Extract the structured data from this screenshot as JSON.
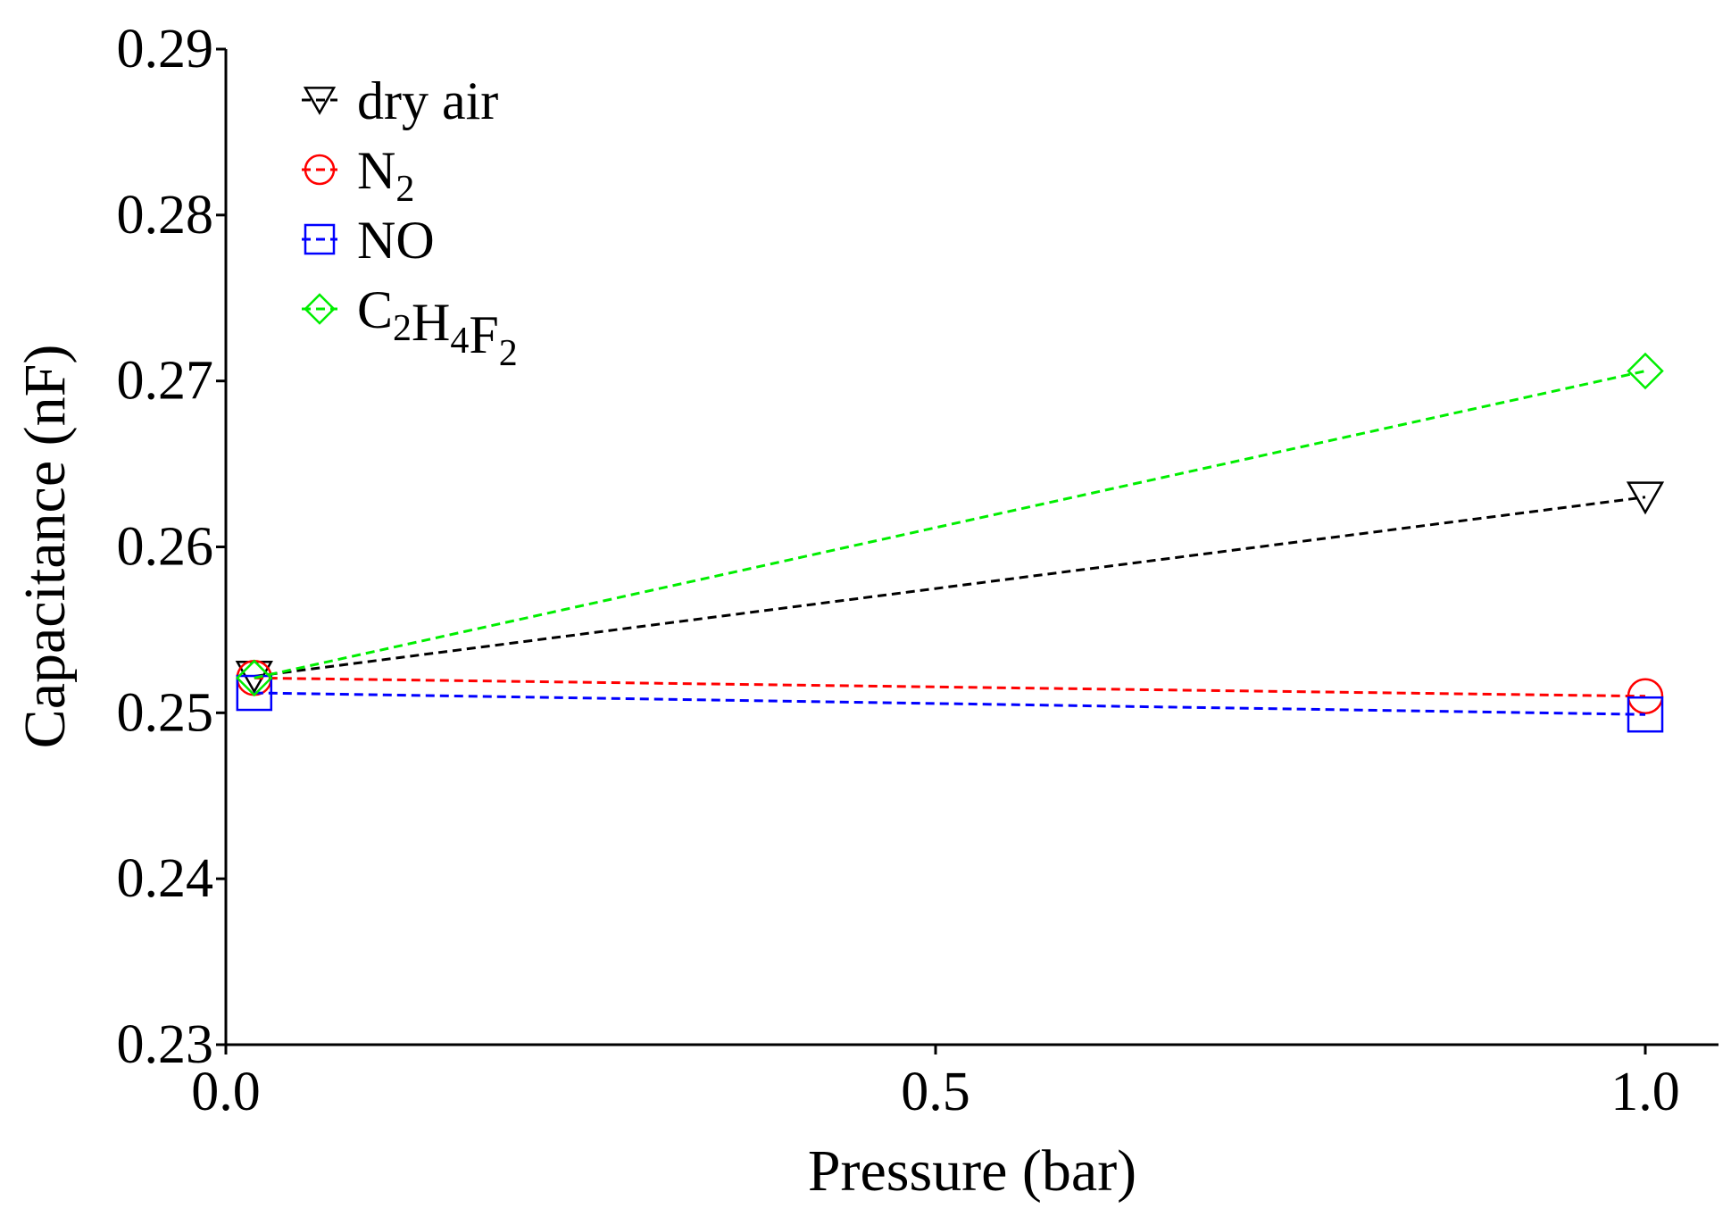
{
  "chart_data": {
    "type": "line",
    "title": "",
    "xlabel": "Pressure (bar)",
    "ylabel": "Capacitance (nF)",
    "xlim": [
      0.0,
      1.05
    ],
    "ylim": [
      0.23,
      0.29
    ],
    "xticks": [
      0.0,
      0.5,
      1.0
    ],
    "xtick_labels": [
      "0.0",
      "0.5",
      "1.0"
    ],
    "yticks": [
      0.23,
      0.24,
      0.25,
      0.26,
      0.27,
      0.28,
      0.29
    ],
    "ytick_labels": [
      "0.23",
      "0.24",
      "0.25",
      "0.26",
      "0.27",
      "0.28",
      "0.29"
    ],
    "grid": false,
    "legend_position": "top-left",
    "x": [
      0.02,
      1.0
    ],
    "series": [
      {
        "name": "dry air",
        "legend_parts": [
          {
            "t": "dry air"
          }
        ],
        "marker": "triangle-down",
        "color": "#000000",
        "values": [
          0.2522,
          0.263
        ]
      },
      {
        "name": "N2",
        "legend_parts": [
          {
            "t": "N"
          },
          {
            "t": "2",
            "sub": true
          }
        ],
        "marker": "circle",
        "color": "#ff0000",
        "values": [
          0.2521,
          0.251
        ]
      },
      {
        "name": "NO",
        "legend_parts": [
          {
            "t": "NO"
          }
        ],
        "marker": "square",
        "color": "#0000ff",
        "values": [
          0.2512,
          0.2499
        ]
      },
      {
        "name": "C2H4F2",
        "legend_parts": [
          {
            "t": "C"
          },
          {
            "t": "2",
            "sub": true
          },
          {
            "t": "H"
          },
          {
            "t": "4",
            "sub": true
          },
          {
            "t": "F"
          },
          {
            "t": "2",
            "sub": true
          }
        ],
        "marker": "diamond",
        "color": "#00ee00",
        "values": [
          0.2521,
          0.2706
        ]
      }
    ]
  }
}
